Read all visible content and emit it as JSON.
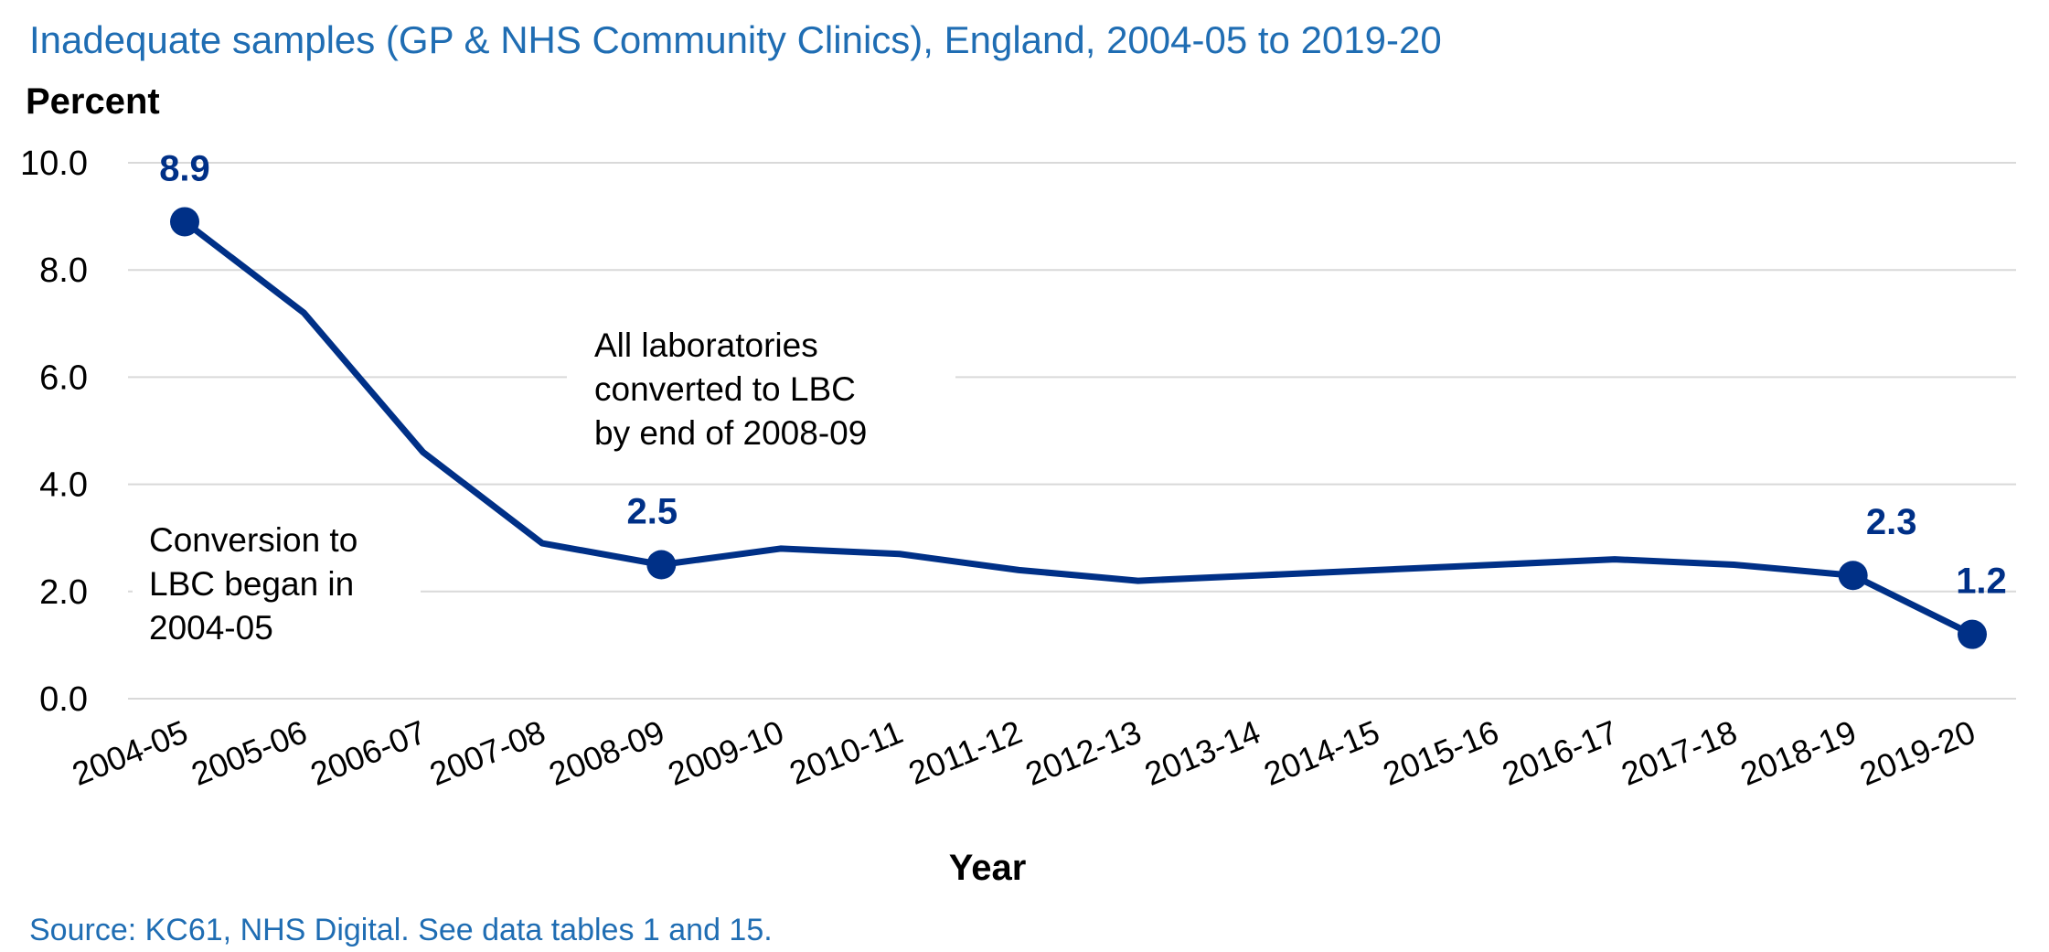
{
  "chart_data": {
    "type": "line",
    "title": "Inadequate samples (GP & NHS Community Clinics), England, 2004-05 to 2019-20",
    "ylabel": "Percent",
    "xlabel": "Year",
    "ylim": [
      0,
      10
    ],
    "yticks": [
      "0.0",
      "2.0",
      "4.0",
      "6.0",
      "8.0",
      "10.0"
    ],
    "grid": true,
    "categories": [
      "2004-05",
      "2005-06",
      "2006-07",
      "2007-08",
      "2008-09",
      "2009-10",
      "2010-11",
      "2011-12",
      "2012-13",
      "2013-14",
      "2014-15",
      "2015-16",
      "2016-17",
      "2017-18",
      "2018-19",
      "2019-20"
    ],
    "series": [
      {
        "values": [
          8.9,
          7.2,
          4.6,
          2.9,
          2.5,
          2.8,
          2.7,
          2.4,
          2.2,
          2.3,
          2.4,
          2.5,
          2.6,
          2.5,
          2.3,
          1.2
        ],
        "color": "#003087"
      }
    ],
    "markers": [
      {
        "index": 0,
        "label": "8.9"
      },
      {
        "index": 4,
        "label": "2.5"
      },
      {
        "index": 14,
        "label": "2.3"
      },
      {
        "index": 15,
        "label": "1.2"
      }
    ],
    "annotations": [
      {
        "lines": [
          "All laboratories",
          "converted to LBC",
          "by end of 2008-09"
        ]
      },
      {
        "lines": [
          "Conversion to",
          "LBC began in",
          "2004-05"
        ]
      }
    ],
    "source": "Source: KC61, NHS Digital. See data tables 1 and 15."
  }
}
